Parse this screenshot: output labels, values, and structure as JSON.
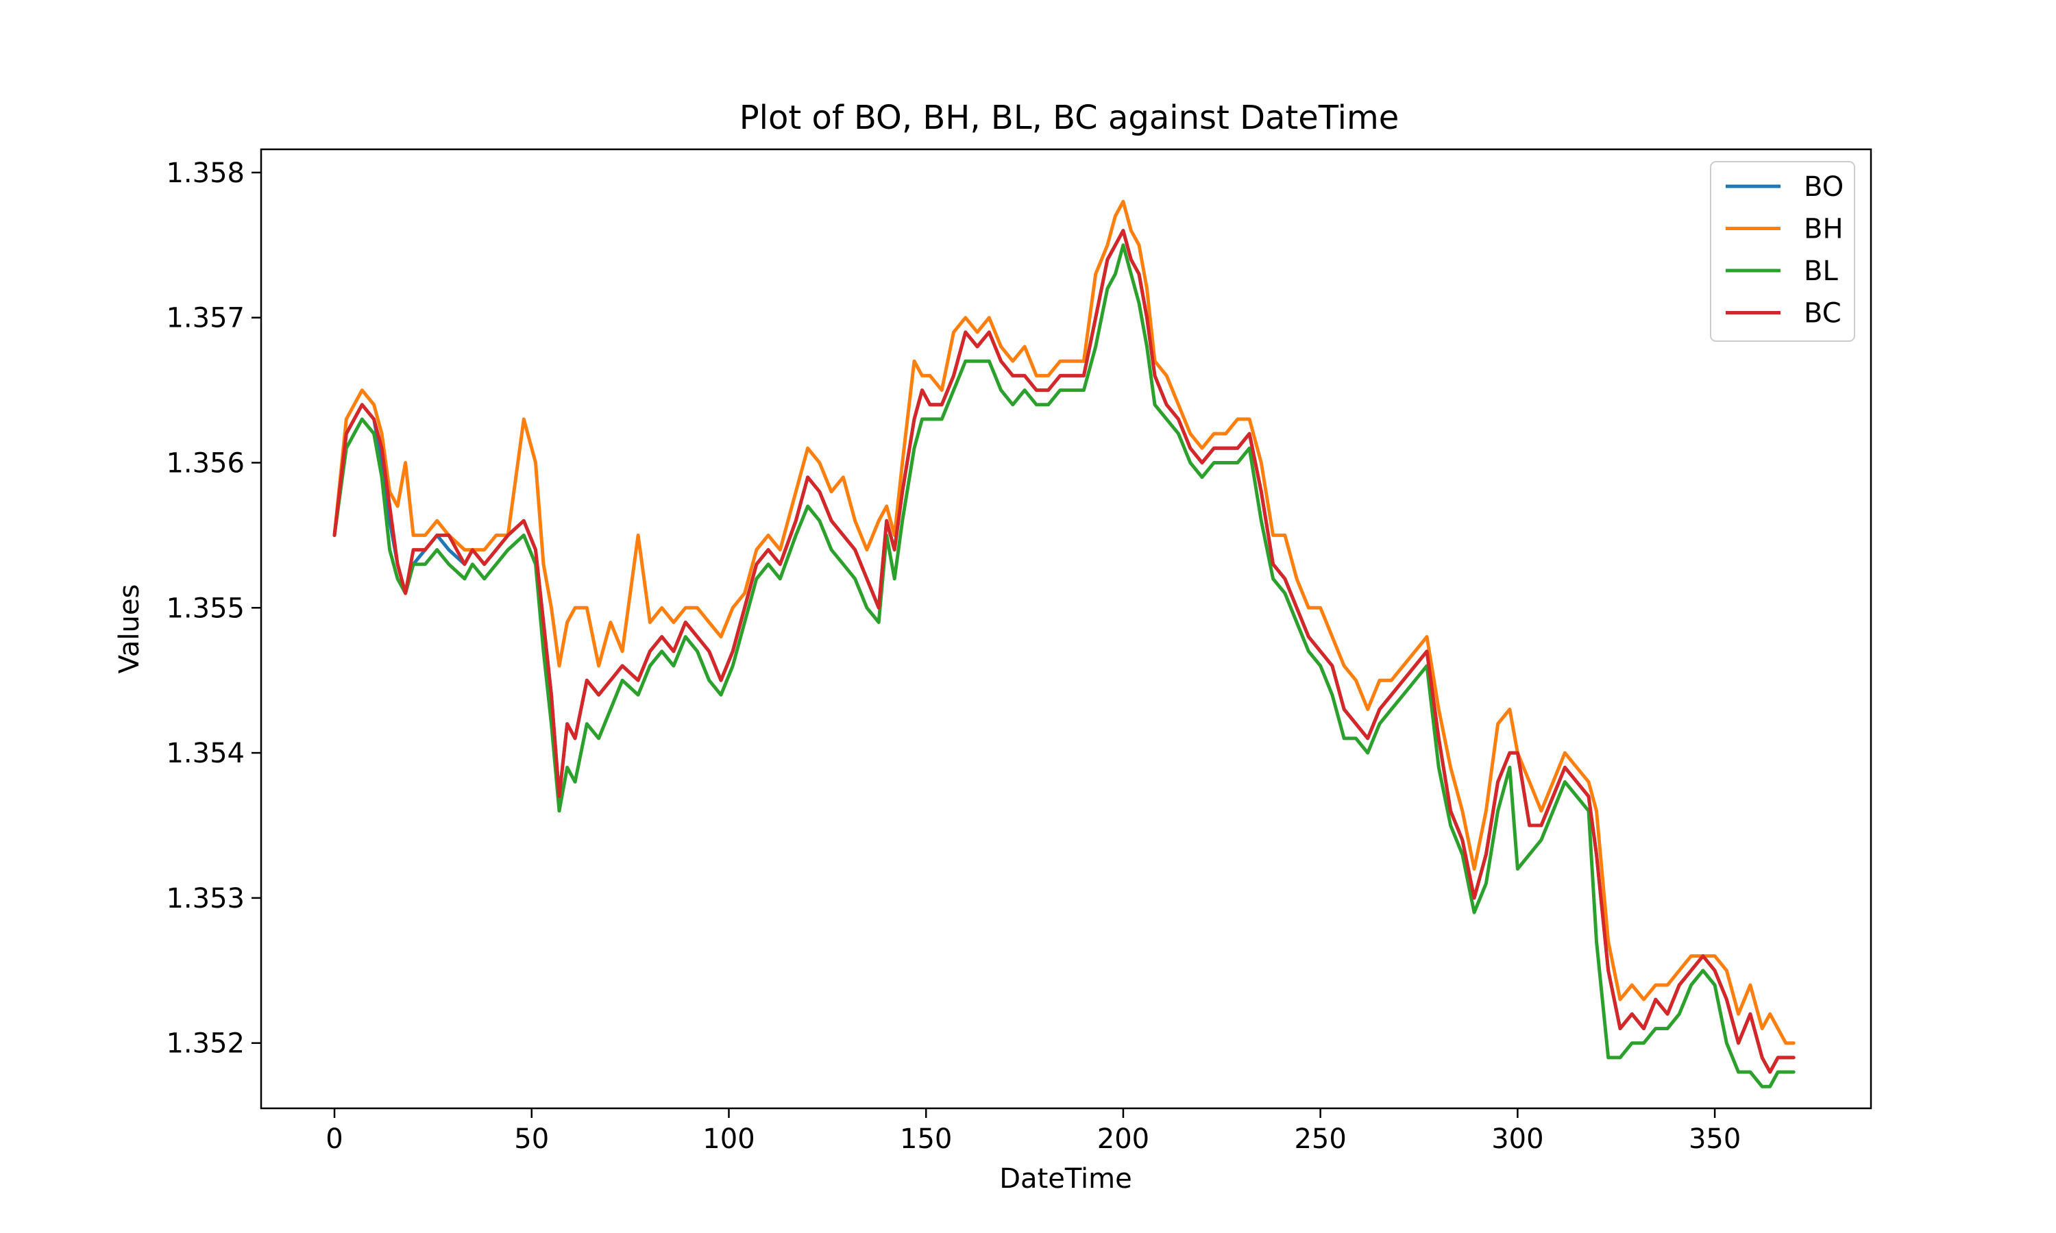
{
  "chart_data": {
    "type": "line",
    "title": "Plot of BO, BH, BL, BC against DateTime",
    "xlabel": "DateTime",
    "ylabel": "Values",
    "xlim": [
      -18.6,
      389.6
    ],
    "ylim": [
      1.35155,
      1.35816
    ],
    "xticks": [
      {
        "value": 0,
        "label": "0"
      },
      {
        "value": 50,
        "label": "50"
      },
      {
        "value": 100,
        "label": "100"
      },
      {
        "value": 150,
        "label": "150"
      },
      {
        "value": 200,
        "label": "200"
      },
      {
        "value": 250,
        "label": "250"
      },
      {
        "value": 300,
        "label": "300"
      },
      {
        "value": 350,
        "label": "350"
      }
    ],
    "yticks": [
      {
        "value": 1.352,
        "label": "1.352"
      },
      {
        "value": 1.353,
        "label": "1.353"
      },
      {
        "value": 1.354,
        "label": "1.354"
      },
      {
        "value": 1.355,
        "label": "1.355"
      },
      {
        "value": 1.356,
        "label": "1.356"
      },
      {
        "value": 1.357,
        "label": "1.357"
      },
      {
        "value": 1.358,
        "label": "1.358"
      }
    ],
    "grid": false,
    "legend_position": "top-right",
    "anchor_x": [
      0,
      3,
      7,
      10,
      12,
      14,
      16,
      18,
      20,
      23,
      26,
      29,
      33,
      35,
      38,
      41,
      44,
      48,
      51,
      53,
      55,
      57,
      59,
      61,
      64,
      67,
      70,
      73,
      77,
      80,
      83,
      86,
      89,
      92,
      95,
      98,
      101,
      104,
      107,
      110,
      113,
      117,
      120,
      123,
      126,
      129,
      132,
      135,
      138,
      140,
      142,
      144,
      147,
      149,
      151,
      154,
      157,
      160,
      163,
      166,
      169,
      172,
      175,
      178,
      181,
      184,
      187,
      190,
      193,
      196,
      198,
      200,
      202,
      204,
      206,
      208,
      211,
      214,
      217,
      220,
      223,
      226,
      229,
      232,
      235,
      238,
      241,
      244,
      247,
      250,
      253,
      256,
      259,
      262,
      265,
      268,
      271,
      274,
      277,
      280,
      283,
      286,
      289,
      292,
      295,
      298,
      300,
      303,
      306,
      309,
      312,
      315,
      318,
      320,
      323,
      326,
      329,
      332,
      335,
      338,
      341,
      344,
      347,
      350,
      353,
      356,
      359,
      362,
      364,
      366,
      368,
      370
    ],
    "series": [
      {
        "name": "BO",
        "color": "#1f77b4",
        "values": [
          1.3555,
          1.3562,
          1.3564,
          1.3563,
          1.356,
          1.3556,
          1.3553,
          1.3551,
          1.3553,
          1.3554,
          1.3555,
          1.3554,
          1.3553,
          1.3554,
          1.3553,
          1.3554,
          1.3555,
          1.3556,
          1.3554,
          1.3549,
          1.3544,
          1.3537,
          1.3542,
          1.3541,
          1.3545,
          1.3544,
          1.3545,
          1.3546,
          1.3545,
          1.3547,
          1.3548,
          1.3547,
          1.3549,
          1.3548,
          1.3547,
          1.3545,
          1.3547,
          1.355,
          1.3553,
          1.3554,
          1.3553,
          1.3556,
          1.3559,
          1.3558,
          1.3556,
          1.3555,
          1.3554,
          1.3552,
          1.355,
          1.3556,
          1.3554,
          1.3558,
          1.3563,
          1.3565,
          1.3564,
          1.3564,
          1.3566,
          1.3569,
          1.3568,
          1.3569,
          1.3567,
          1.3566,
          1.3566,
          1.3565,
          1.3565,
          1.3566,
          1.3566,
          1.3566,
          1.357,
          1.3574,
          1.3575,
          1.3576,
          1.3574,
          1.3573,
          1.357,
          1.3566,
          1.3564,
          1.3563,
          1.3561,
          1.356,
          1.3561,
          1.3561,
          1.3561,
          1.3562,
          1.3558,
          1.3553,
          1.3552,
          1.355,
          1.3548,
          1.3547,
          1.3546,
          1.3543,
          1.3542,
          1.3541,
          1.3543,
          1.3544,
          1.3545,
          1.3546,
          1.3547,
          1.3541,
          1.3536,
          1.3534,
          1.353,
          1.3533,
          1.3538,
          1.354,
          1.354,
          1.3535,
          1.3535,
          1.3537,
          1.3539,
          1.3538,
          1.3537,
          1.3533,
          1.3525,
          1.3521,
          1.3522,
          1.3521,
          1.3523,
          1.3522,
          1.3524,
          1.3525,
          1.3526,
          1.3525,
          1.3523,
          1.352,
          1.3522,
          1.3519,
          1.3518,
          1.3519,
          1.3519,
          1.3519
        ]
      },
      {
        "name": "BH",
        "color": "#ff7f0e",
        "values": [
          1.3555,
          1.3563,
          1.3565,
          1.3564,
          1.3562,
          1.3558,
          1.3557,
          1.356,
          1.3555,
          1.3555,
          1.3556,
          1.3555,
          1.3554,
          1.3554,
          1.3554,
          1.3555,
          1.3555,
          1.3563,
          1.356,
          1.3553,
          1.355,
          1.3546,
          1.3549,
          1.355,
          1.355,
          1.3546,
          1.3549,
          1.3547,
          1.3555,
          1.3549,
          1.355,
          1.3549,
          1.355,
          1.355,
          1.3549,
          1.3548,
          1.355,
          1.3551,
          1.3554,
          1.3555,
          1.3554,
          1.3558,
          1.3561,
          1.356,
          1.3558,
          1.3559,
          1.3556,
          1.3554,
          1.3556,
          1.3557,
          1.3555,
          1.356,
          1.3567,
          1.3566,
          1.3566,
          1.3565,
          1.3569,
          1.357,
          1.3569,
          1.357,
          1.3568,
          1.3567,
          1.3568,
          1.3566,
          1.3566,
          1.3567,
          1.3567,
          1.3567,
          1.3573,
          1.3575,
          1.3577,
          1.3578,
          1.3576,
          1.3575,
          1.3572,
          1.3567,
          1.3566,
          1.3564,
          1.3562,
          1.3561,
          1.3562,
          1.3562,
          1.3563,
          1.3563,
          1.356,
          1.3555,
          1.3555,
          1.3552,
          1.355,
          1.355,
          1.3548,
          1.3546,
          1.3545,
          1.3543,
          1.3545,
          1.3545,
          1.3546,
          1.3547,
          1.3548,
          1.3543,
          1.3539,
          1.3536,
          1.3532,
          1.3536,
          1.3542,
          1.3543,
          1.354,
          1.3538,
          1.3536,
          1.3538,
          1.354,
          1.3539,
          1.3538,
          1.3536,
          1.3527,
          1.3523,
          1.3524,
          1.3523,
          1.3524,
          1.3524,
          1.3525,
          1.3526,
          1.3526,
          1.3526,
          1.3525,
          1.3522,
          1.3524,
          1.3521,
          1.3522,
          1.3521,
          1.352,
          1.352
        ]
      },
      {
        "name": "BL",
        "color": "#2ca02c",
        "values": [
          1.3555,
          1.3561,
          1.3563,
          1.3562,
          1.3559,
          1.3554,
          1.3552,
          1.3551,
          1.3553,
          1.3553,
          1.3554,
          1.3553,
          1.3552,
          1.3553,
          1.3552,
          1.3553,
          1.3554,
          1.3555,
          1.3553,
          1.3547,
          1.3542,
          1.3536,
          1.3539,
          1.3538,
          1.3542,
          1.3541,
          1.3543,
          1.3545,
          1.3544,
          1.3546,
          1.3547,
          1.3546,
          1.3548,
          1.3547,
          1.3545,
          1.3544,
          1.3546,
          1.3549,
          1.3552,
          1.3553,
          1.3552,
          1.3555,
          1.3557,
          1.3556,
          1.3554,
          1.3553,
          1.3552,
          1.355,
          1.3549,
          1.3555,
          1.3552,
          1.3556,
          1.3561,
          1.3563,
          1.3563,
          1.3563,
          1.3565,
          1.3567,
          1.3567,
          1.3567,
          1.3565,
          1.3564,
          1.3565,
          1.3564,
          1.3564,
          1.3565,
          1.3565,
          1.3565,
          1.3568,
          1.3572,
          1.3573,
          1.3575,
          1.3573,
          1.3571,
          1.3568,
          1.3564,
          1.3563,
          1.3562,
          1.356,
          1.3559,
          1.356,
          1.356,
          1.356,
          1.3561,
          1.3556,
          1.3552,
          1.3551,
          1.3549,
          1.3547,
          1.3546,
          1.3544,
          1.3541,
          1.3541,
          1.354,
          1.3542,
          1.3543,
          1.3544,
          1.3545,
          1.3546,
          1.3539,
          1.3535,
          1.3533,
          1.3529,
          1.3531,
          1.3536,
          1.3539,
          1.3532,
          1.3533,
          1.3534,
          1.3536,
          1.3538,
          1.3537,
          1.3536,
          1.3527,
          1.3519,
          1.3519,
          1.352,
          1.352,
          1.3521,
          1.3521,
          1.3522,
          1.3524,
          1.3525,
          1.3524,
          1.352,
          1.3518,
          1.3518,
          1.3517,
          1.3517,
          1.3518,
          1.3518,
          1.3518
        ]
      },
      {
        "name": "BC",
        "color": "#d62728",
        "values": [
          1.3555,
          1.3562,
          1.3564,
          1.3563,
          1.3561,
          1.3557,
          1.3553,
          1.3551,
          1.3554,
          1.3554,
          1.3555,
          1.3555,
          1.3553,
          1.3554,
          1.3553,
          1.3554,
          1.3555,
          1.3556,
          1.3554,
          1.3549,
          1.3544,
          1.3537,
          1.3542,
          1.3541,
          1.3545,
          1.3544,
          1.3545,
          1.3546,
          1.3545,
          1.3547,
          1.3548,
          1.3547,
          1.3549,
          1.3548,
          1.3547,
          1.3545,
          1.3547,
          1.355,
          1.3553,
          1.3554,
          1.3553,
          1.3556,
          1.3559,
          1.3558,
          1.3556,
          1.3555,
          1.3554,
          1.3552,
          1.355,
          1.3556,
          1.3554,
          1.3558,
          1.3563,
          1.3565,
          1.3564,
          1.3564,
          1.3566,
          1.3569,
          1.3568,
          1.3569,
          1.3567,
          1.3566,
          1.3566,
          1.3565,
          1.3565,
          1.3566,
          1.3566,
          1.3566,
          1.357,
          1.3574,
          1.3575,
          1.3576,
          1.3574,
          1.3573,
          1.357,
          1.3566,
          1.3564,
          1.3563,
          1.3561,
          1.356,
          1.3561,
          1.3561,
          1.3561,
          1.3562,
          1.3558,
          1.3553,
          1.3552,
          1.355,
          1.3548,
          1.3547,
          1.3546,
          1.3543,
          1.3542,
          1.3541,
          1.3543,
          1.3544,
          1.3545,
          1.3546,
          1.3547,
          1.3541,
          1.3536,
          1.3534,
          1.353,
          1.3533,
          1.3538,
          1.354,
          1.354,
          1.3535,
          1.3535,
          1.3537,
          1.3539,
          1.3538,
          1.3537,
          1.3533,
          1.3525,
          1.3521,
          1.3522,
          1.3521,
          1.3523,
          1.3522,
          1.3524,
          1.3525,
          1.3526,
          1.3525,
          1.3523,
          1.352,
          1.3522,
          1.3519,
          1.3518,
          1.3519,
          1.3519,
          1.3519
        ]
      }
    ]
  }
}
